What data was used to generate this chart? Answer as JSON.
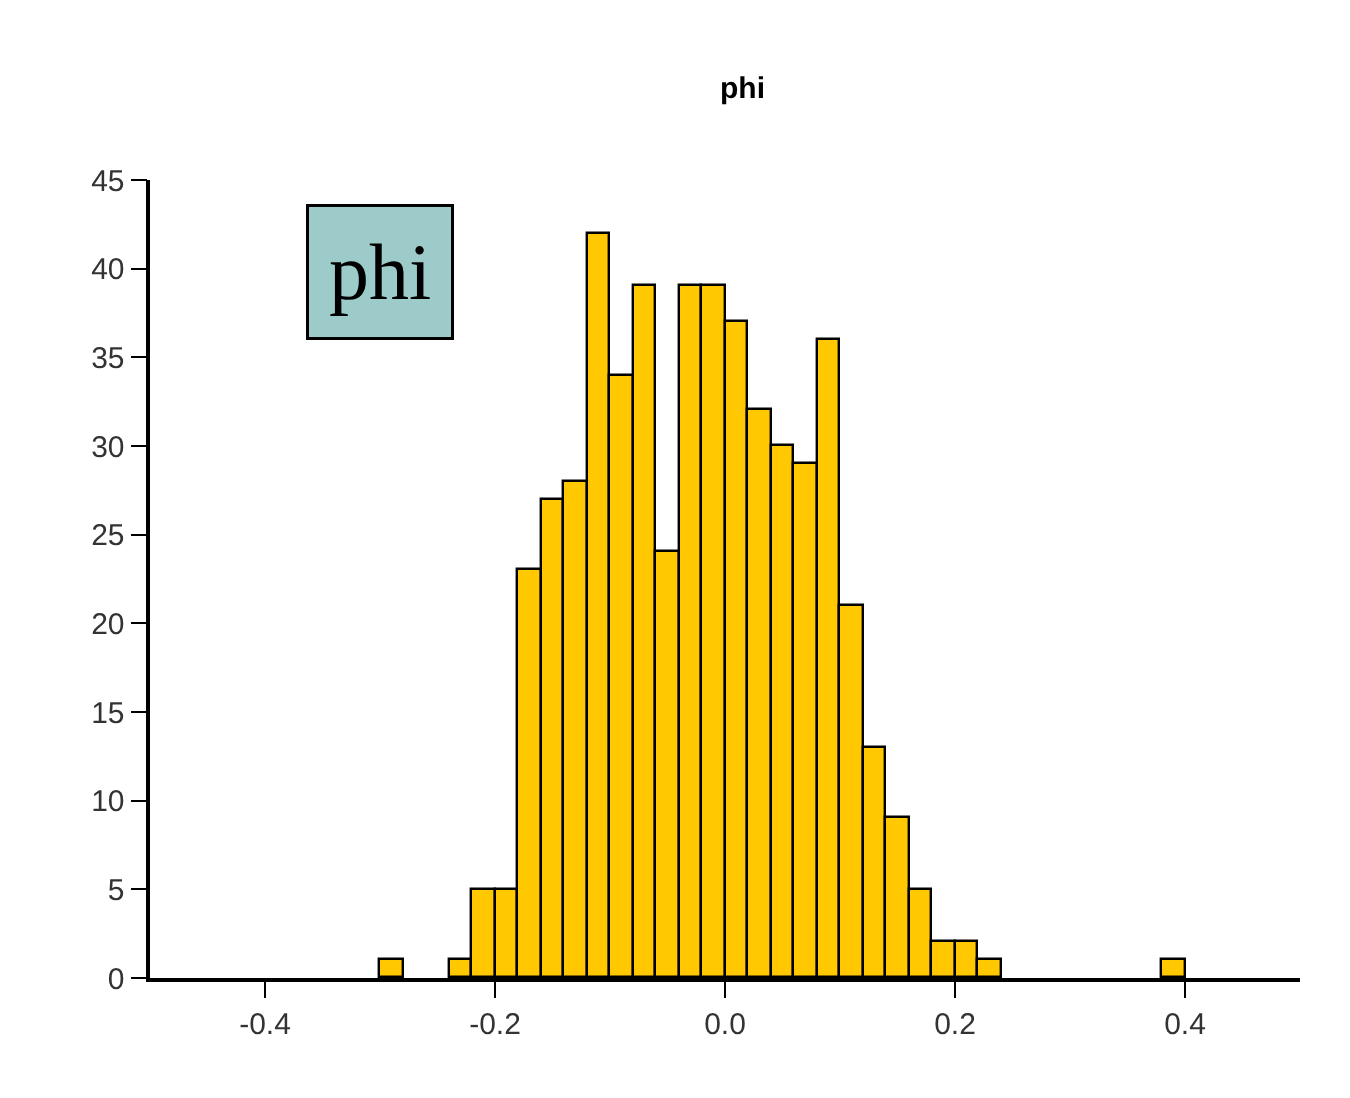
{
  "chart_data": {
    "type": "histogram",
    "title": "phi",
    "annotations": [
      "phi"
    ],
    "bins": [
      -0.3,
      -0.28,
      -0.26,
      -0.24,
      -0.22,
      -0.2,
      -0.18,
      -0.16,
      -0.14,
      -0.12,
      -0.1,
      -0.08,
      -0.06,
      -0.04,
      -0.02,
      0.0,
      0.02,
      0.04,
      0.06,
      0.08,
      0.1,
      0.12,
      0.14,
      0.16,
      0.18,
      0.2,
      0.22,
      0.24,
      0.26,
      0.28,
      0.3,
      0.32,
      0.34,
      0.36,
      0.38,
      0.4
    ],
    "values": [
      1,
      0,
      0,
      1,
      5,
      5,
      23,
      27,
      28,
      42,
      34,
      39,
      24,
      39,
      39,
      37,
      32,
      30,
      29,
      36,
      21,
      13,
      9,
      5,
      2,
      2,
      1,
      0,
      0,
      0,
      0,
      0,
      0,
      0,
      1
    ],
    "color": "#ffc800",
    "xlim": [
      -0.5,
      0.5
    ],
    "xticks": [
      {
        "value": -0.4,
        "label": "-0.4"
      },
      {
        "value": -0.2,
        "label": "-0.2"
      },
      {
        "value": 0.0,
        "label": "0.0"
      },
      {
        "value": 0.2,
        "label": "0.2"
      },
      {
        "value": 0.4,
        "label": "0.4"
      }
    ],
    "ylim": [
      0,
      45
    ],
    "yticks": [
      0,
      5,
      10,
      15,
      20,
      25,
      30,
      35,
      40,
      45
    ],
    "grid": false
  }
}
